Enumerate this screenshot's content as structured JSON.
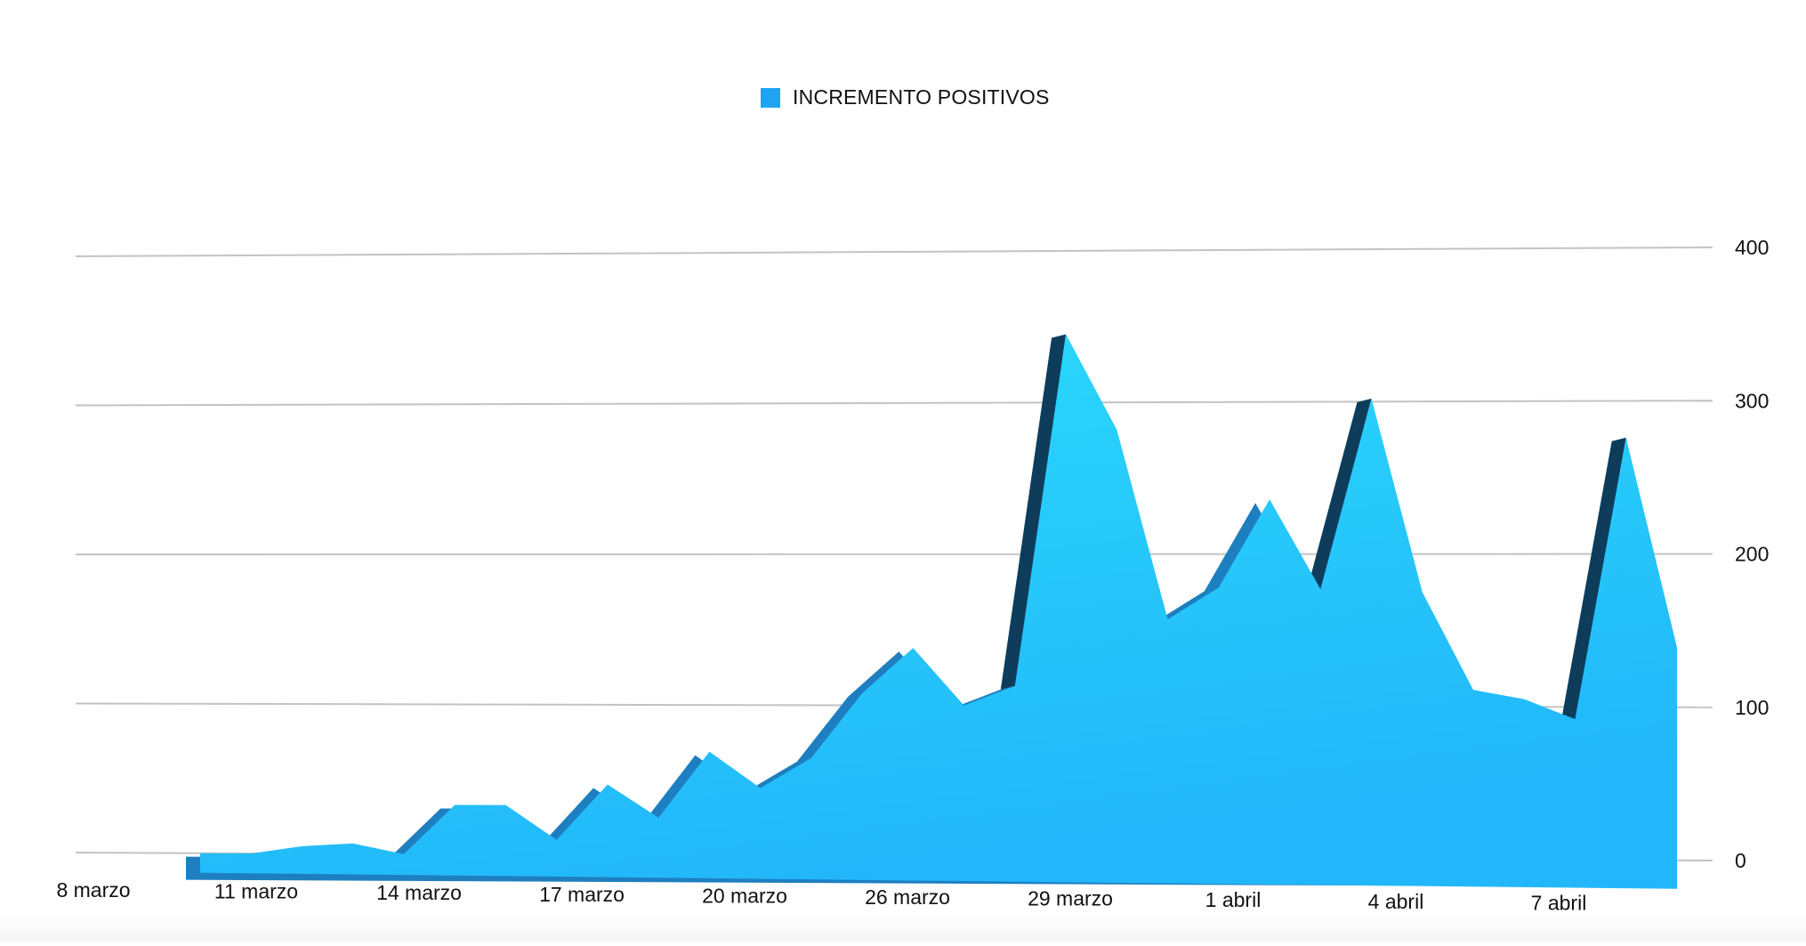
{
  "chart_data": {
    "type": "area",
    "legend": {
      "label": "INCREMENTO POSITIVOS",
      "position": "top-center"
    },
    "x_tick_labels": [
      "8 marzo",
      "11 marzo",
      "14 marzo",
      "17 marzo",
      "20 marzo",
      "26 marzo",
      "29 marzo",
      "1 abril",
      "4 abril",
      "7 abril"
    ],
    "y_axis": {
      "side": "right",
      "ticks": [
        0,
        100,
        200,
        300,
        400
      ],
      "ylim": [
        0,
        400
      ]
    },
    "grid": true,
    "series": [
      {
        "name": "INCREMENTO POSITIVOS",
        "values": [
          0,
          0,
          5,
          7,
          0,
          33,
          33,
          10,
          47,
          25,
          69,
          45,
          65,
          108,
          138,
          100,
          113,
          345,
          282,
          157,
          178,
          236,
          177,
          302,
          175,
          111,
          105,
          92,
          276,
          139
        ]
      }
    ],
    "colors": {
      "area_top": "#2bdcfb",
      "area_bottom": "#22b7fa",
      "shadow": "#1e7fc0",
      "shadow_dark": "#0e3d5c",
      "legend_swatch": "#1fa5f0",
      "grid": "#c3c3c3"
    }
  }
}
